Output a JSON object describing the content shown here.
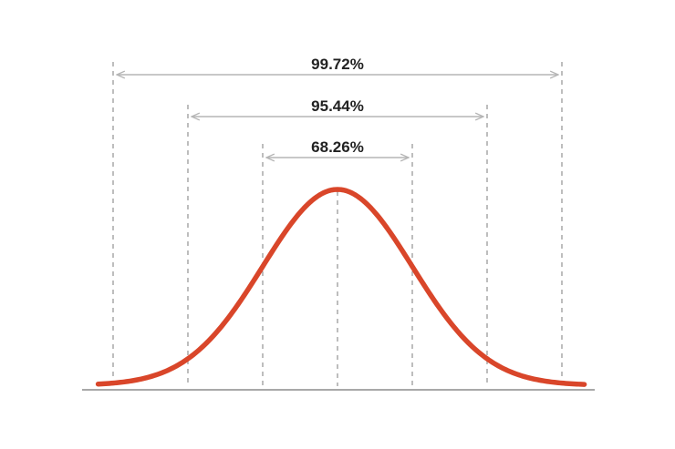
{
  "chart_data": {
    "type": "line",
    "title": "",
    "xlabel": "",
    "ylabel": "",
    "mean": 0,
    "std": 1,
    "xlim": [
      -3.2,
      3.3
    ],
    "grid": false,
    "legend": "none",
    "sigma_markers": [
      -3,
      -2,
      -1,
      0,
      1,
      2,
      3
    ],
    "ranges": [
      {
        "label": "99.72%",
        "from": -3,
        "to": 3
      },
      {
        "label": "95.44%",
        "from": -2,
        "to": 2
      },
      {
        "label": "68.26%",
        "from": -1,
        "to": 1
      }
    ],
    "colors": {
      "curve": "#d9462a",
      "guide_lines": "#9a9a9a",
      "arrows": "#b5b5b5",
      "baseline": "#a8a8a8",
      "label_text": "#222222"
    }
  }
}
